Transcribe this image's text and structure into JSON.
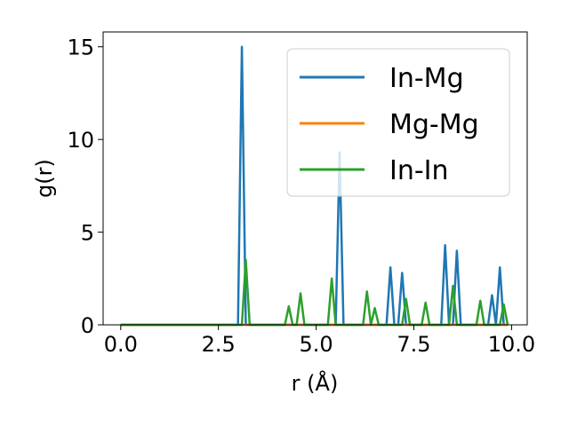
{
  "chart_data": {
    "type": "line",
    "xlabel": "r (Å)",
    "ylabel": "g(r)",
    "xlim": [
      -0.45,
      10.4
    ],
    "ylim": [
      0,
      15.8
    ],
    "xticks": [
      0.0,
      2.5,
      5.0,
      7.5,
      10.0
    ],
    "xtick_labels": [
      "0.0",
      "2.5",
      "5.0",
      "7.5",
      "10.0"
    ],
    "yticks": [
      0,
      5,
      10,
      15
    ],
    "ytick_labels": [
      "0",
      "5",
      "10",
      "15"
    ],
    "grid": false,
    "legend_position": "upper right",
    "series": [
      {
        "name": "In-Mg",
        "color": "#1f77b4",
        "points": [
          [
            0.0,
            0
          ],
          [
            3.0,
            0
          ],
          [
            3.1,
            15.0
          ],
          [
            3.2,
            0
          ],
          [
            5.5,
            0
          ],
          [
            5.6,
            9.3
          ],
          [
            5.7,
            0
          ],
          [
            6.8,
            0
          ],
          [
            6.9,
            3.1
          ],
          [
            7.0,
            0
          ],
          [
            7.1,
            0
          ],
          [
            7.2,
            2.8
          ],
          [
            7.3,
            0
          ],
          [
            8.2,
            0
          ],
          [
            8.3,
            4.3
          ],
          [
            8.4,
            0
          ],
          [
            8.5,
            0
          ],
          [
            8.6,
            4.0
          ],
          [
            8.7,
            0
          ],
          [
            9.4,
            0
          ],
          [
            9.5,
            1.6
          ],
          [
            9.6,
            0
          ],
          [
            9.7,
            3.1
          ],
          [
            9.8,
            0
          ],
          [
            9.9,
            0
          ]
        ]
      },
      {
        "name": "Mg-Mg",
        "color": "#ff7f0e",
        "points": [
          [
            0.0,
            0
          ],
          [
            9.9,
            0
          ]
        ]
      },
      {
        "name": "In-In",
        "color": "#2ca02c",
        "points": [
          [
            0.0,
            0
          ],
          [
            3.1,
            0
          ],
          [
            3.2,
            3.5
          ],
          [
            3.3,
            0
          ],
          [
            4.2,
            0
          ],
          [
            4.3,
            1.0
          ],
          [
            4.4,
            0
          ],
          [
            4.5,
            0
          ],
          [
            4.6,
            1.7
          ],
          [
            4.7,
            0
          ],
          [
            5.3,
            0
          ],
          [
            5.4,
            2.5
          ],
          [
            5.5,
            0
          ],
          [
            6.2,
            0
          ],
          [
            6.3,
            1.8
          ],
          [
            6.4,
            0
          ],
          [
            6.5,
            0.9
          ],
          [
            6.6,
            0
          ],
          [
            7.2,
            0
          ],
          [
            7.3,
            1.4
          ],
          [
            7.4,
            0
          ],
          [
            7.7,
            0
          ],
          [
            7.8,
            1.2
          ],
          [
            7.9,
            0
          ],
          [
            8.4,
            0
          ],
          [
            8.5,
            2.1
          ],
          [
            8.6,
            0
          ],
          [
            9.1,
            0
          ],
          [
            9.2,
            1.3
          ],
          [
            9.3,
            0
          ],
          [
            9.7,
            0
          ],
          [
            9.8,
            1.1
          ],
          [
            9.9,
            0
          ]
        ]
      }
    ]
  }
}
